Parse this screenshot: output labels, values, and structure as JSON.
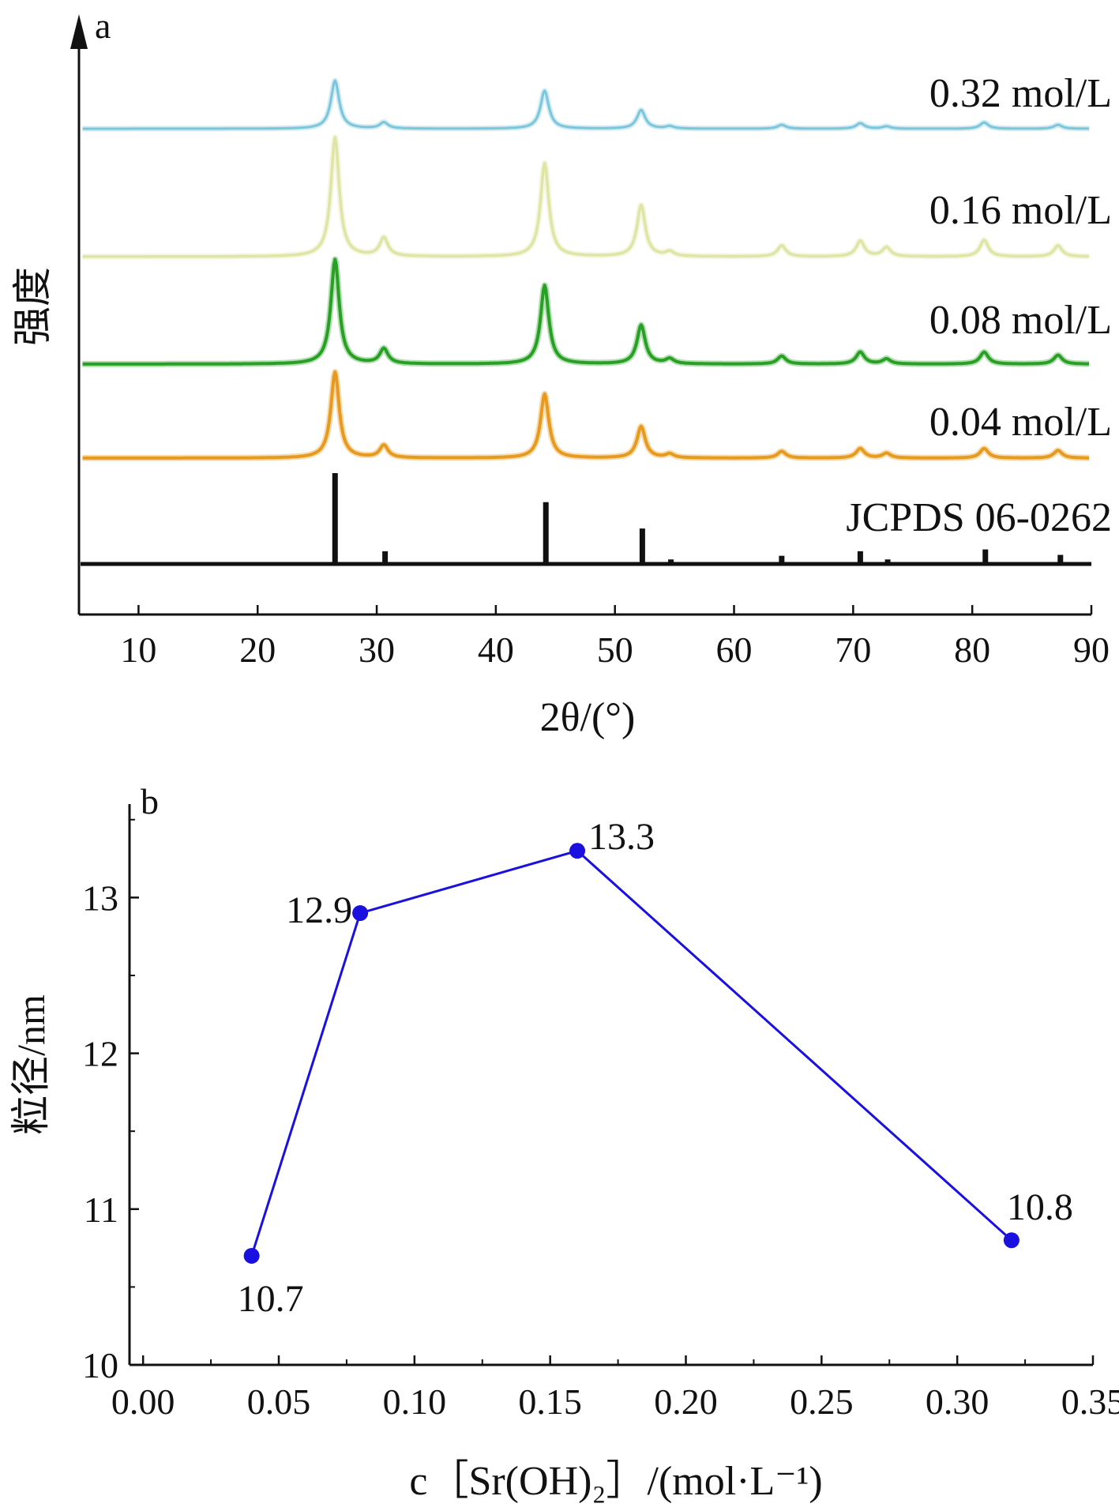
{
  "chart_data": [
    {
      "panel": "a",
      "type": "line",
      "xlabel": "2θ/(°)",
      "ylabel": "强度",
      "xlim": [
        5,
        90
      ],
      "xticks": [
        10,
        20,
        30,
        40,
        50,
        60,
        70,
        80,
        90
      ],
      "y_ticks_shown": false,
      "legend": "none",
      "grid": false,
      "series": [
        {
          "name": "0.32 mol/L",
          "color": "#7cc6dc",
          "style": "profile",
          "peaks": [
            {
              "x": 26.5,
              "h": 0.62
            },
            {
              "x": 30.6,
              "h": 0.08
            },
            {
              "x": 44.1,
              "h": 0.49
            },
            {
              "x": 52.2,
              "h": 0.24
            },
            {
              "x": 54.6,
              "h": 0.03
            },
            {
              "x": 64.0,
              "h": 0.05
            },
            {
              "x": 70.6,
              "h": 0.07
            },
            {
              "x": 72.8,
              "h": 0.03
            },
            {
              "x": 81.0,
              "h": 0.08
            },
            {
              "x": 87.2,
              "h": 0.05
            }
          ]
        },
        {
          "name": "0.16 mol/L",
          "color": "#dfe5a4",
          "style": "profile",
          "peaks": [
            {
              "x": 26.5,
              "h": 1.3
            },
            {
              "x": 30.6,
              "h": 0.2
            },
            {
              "x": 44.1,
              "h": 1.02
            },
            {
              "x": 52.2,
              "h": 0.56
            },
            {
              "x": 54.6,
              "h": 0.05
            },
            {
              "x": 64.0,
              "h": 0.12
            },
            {
              "x": 70.6,
              "h": 0.17
            },
            {
              "x": 72.8,
              "h": 0.1
            },
            {
              "x": 81.0,
              "h": 0.18
            },
            {
              "x": 87.2,
              "h": 0.12
            }
          ]
        },
        {
          "name": "0.08 mol/L",
          "color": "#28a024",
          "style": "profile",
          "peaks": [
            {
              "x": 26.5,
              "h": 1.05
            },
            {
              "x": 30.6,
              "h": 0.15
            },
            {
              "x": 44.1,
              "h": 0.79
            },
            {
              "x": 52.2,
              "h": 0.39
            },
            {
              "x": 54.6,
              "h": 0.05
            },
            {
              "x": 64.0,
              "h": 0.08
            },
            {
              "x": 70.6,
              "h": 0.12
            },
            {
              "x": 72.8,
              "h": 0.05
            },
            {
              "x": 81.0,
              "h": 0.12
            },
            {
              "x": 87.2,
              "h": 0.09
            }
          ]
        },
        {
          "name": "0.04 mol/L",
          "color": "#e79a1e",
          "style": "profile",
          "peaks": [
            {
              "x": 26.5,
              "h": 0.9
            },
            {
              "x": 30.6,
              "h": 0.13
            },
            {
              "x": 44.1,
              "h": 0.67
            },
            {
              "x": 52.2,
              "h": 0.33
            },
            {
              "x": 54.6,
              "h": 0.04
            },
            {
              "x": 64.0,
              "h": 0.07
            },
            {
              "x": 70.6,
              "h": 0.1
            },
            {
              "x": 72.8,
              "h": 0.05
            },
            {
              "x": 81.0,
              "h": 0.1
            },
            {
              "x": 87.2,
              "h": 0.08
            }
          ]
        },
        {
          "name": "JCPDS 06-0262",
          "color": "#111111",
          "style": "sticks",
          "peaks": [
            {
              "x": 26.5,
              "h": 1.0
            },
            {
              "x": 30.7,
              "h": 0.14
            },
            {
              "x": 44.2,
              "h": 0.68
            },
            {
              "x": 52.3,
              "h": 0.39
            },
            {
              "x": 54.7,
              "h": 0.05
            },
            {
              "x": 64.0,
              "h": 0.09
            },
            {
              "x": 70.6,
              "h": 0.14
            },
            {
              "x": 72.9,
              "h": 0.05
            },
            {
              "x": 81.1,
              "h": 0.16
            },
            {
              "x": 87.4,
              "h": 0.1
            }
          ]
        }
      ]
    },
    {
      "panel": "b",
      "type": "line",
      "xlabel": "c［Sr(OH)₂］/(mol·L⁻¹)",
      "ylabel": "粒径/nm",
      "xlim": [
        -0.005,
        0.35
      ],
      "ylim": [
        10,
        13.6
      ],
      "xticks": [
        "0.00",
        "0.05",
        "0.10",
        "0.15",
        "0.20",
        "0.25",
        "0.30",
        "0.35"
      ],
      "yticks": [
        "10",
        "11",
        "12",
        "13"
      ],
      "color": "#1a10e0",
      "legend": "none",
      "grid": false,
      "series": [
        {
          "x": [
            0.04,
            0.08,
            0.16,
            0.32
          ],
          "y": [
            10.7,
            12.9,
            13.3,
            10.8
          ],
          "labels": [
            "10.7",
            "12.9",
            "13.3",
            "10.8"
          ]
        }
      ]
    }
  ]
}
